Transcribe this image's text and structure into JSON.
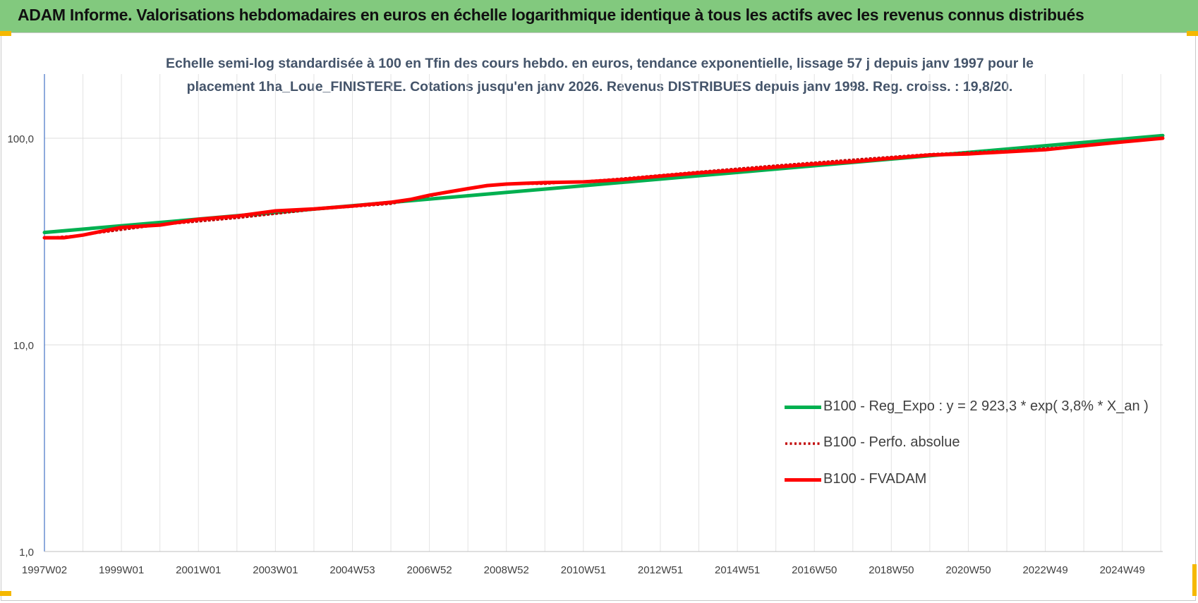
{
  "header": {
    "title": "ADAM Informe. Valorisations hebdomadaires en euros en échelle logarithmique identique à tous les actifs avec les revenus connus distribués"
  },
  "chart_data": {
    "type": "line",
    "title": "Echelle semi-log standardisée à 100 en Tfin des cours hebdo. en euros, tendance exponentielle, lissage 57 j depuis janv 1997 pour le placement 1ha_Loue_FINISTERE.  Cotations jusqu'en janv 2026. Revenus DISTRIBUES depuis janv 1998.  Reg. croiss. : 19,8/20.",
    "title_lines": [
      "Echelle semi-log standardisée à 100 en Tfin des cours hebdo. en euros, tendance exponentielle, lissage 57 j depuis janv 1997 pour le",
      "placement 1ha_Loue_FINISTERE.  Cotations jusqu'en janv 2026. Revenus DISTRIBUES depuis janv 1998.  Reg. croiss. : 19,8/20."
    ],
    "y_scale": "log",
    "ylim": [
      1,
      200
    ],
    "y_ticks": [
      1,
      10,
      100
    ],
    "y_tick_labels": [
      "1,0",
      "10,0",
      "100,0"
    ],
    "xlim": [
      1997.0,
      2026.05
    ],
    "x_tick_labels": [
      "1997W02",
      "1999W01",
      "2001W01",
      "2003W01",
      "2004W53",
      "2006W52",
      "2008W52",
      "2010W51",
      "2012W51",
      "2014W51",
      "2016W50",
      "2018W50",
      "2020W50",
      "2022W49",
      "2024W49"
    ],
    "x_ticks": [
      1997.0,
      1999.0,
      2001.0,
      2003.0,
      2005.0,
      2007.0,
      2009.0,
      2011.0,
      2013.0,
      2015.0,
      2017.0,
      2019.0,
      2021.0,
      2023.0,
      2025.0
    ],
    "grid": true,
    "legend_position": "bottom-right",
    "series": [
      {
        "name": "B100 - Reg_Expo : y = 2 923,3 * exp( 3,8% *  X_an )",
        "color": "#00b050",
        "style": "solid",
        "x": [
          1997.0,
          2026.05
        ],
        "y": [
          35.0,
          103.0
        ]
      },
      {
        "name": "B100 - Perfo. absolue",
        "color": "#c00000",
        "style": "dotted",
        "x": [
          1997.0,
          1998.0,
          2000.0,
          2002.0,
          2004.0,
          2006.0,
          2008.0,
          2009.0,
          2010.0,
          2012.0,
          2014.0,
          2016.0,
          2018.0,
          2020.0,
          2022.0,
          2024.0,
          2026.05
        ],
        "y": [
          33.0,
          34.0,
          38.0,
          41.0,
          45.0,
          48.0,
          57.0,
          60.0,
          60.0,
          64.0,
          69.0,
          74.0,
          79.0,
          84.0,
          87.0,
          92.0,
          100.0
        ]
      },
      {
        "name": "B100 - FVADAM",
        "color": "#ff0000",
        "style": "solid",
        "x": [
          1997.0,
          1997.5,
          1998.0,
          1998.5,
          1999.0,
          1999.5,
          2000.0,
          2001.0,
          2002.0,
          2003.0,
          2004.0,
          2005.0,
          2006.0,
          2006.5,
          2007.0,
          2007.5,
          2008.0,
          2008.5,
          2009.0,
          2009.5,
          2010.0,
          2011.0,
          2012.0,
          2013.0,
          2014.0,
          2015.0,
          2016.0,
          2017.0,
          2018.0,
          2019.0,
          2020.0,
          2021.0,
          2022.0,
          2023.0,
          2024.0,
          2025.0,
          2026.05
        ],
        "y": [
          33.0,
          33.0,
          34.0,
          35.5,
          37.0,
          37.5,
          38.0,
          40.5,
          42.0,
          44.5,
          45.5,
          47.0,
          49.0,
          50.5,
          53.0,
          55.0,
          57.0,
          59.0,
          60.0,
          60.5,
          61.0,
          61.5,
          63.0,
          65.5,
          68.0,
          70.0,
          72.5,
          75.0,
          77.0,
          80.0,
          83.0,
          84.0,
          86.0,
          88.0,
          92.0,
          96.0,
          100.0
        ]
      }
    ]
  }
}
